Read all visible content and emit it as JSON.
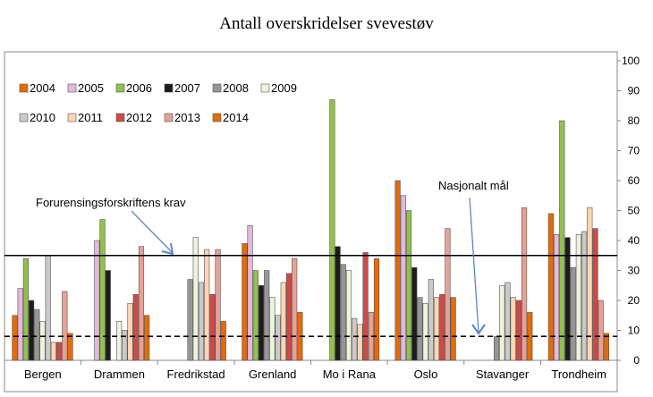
{
  "chart_data": {
    "type": "bar",
    "title": "Antall overskridelser svevestøv",
    "xlabel": "",
    "ylabel": "",
    "ylim": [
      0,
      100
    ],
    "yticks": [
      0,
      10,
      20,
      30,
      40,
      50,
      60,
      70,
      80,
      90,
      100
    ],
    "y_axis_side": "right",
    "legend_placement": "top-left",
    "categories": [
      "Bergen",
      "Drammen",
      "Fredrikstad",
      "Grenland",
      "Mo i Rana",
      "Oslo",
      "Stavanger",
      "Trondheim"
    ],
    "series": [
      {
        "name": "2004",
        "color": "#e36c0a",
        "values": [
          15,
          null,
          null,
          39,
          null,
          60,
          null,
          49
        ]
      },
      {
        "name": "2005",
        "color": "#e4b8dc",
        "values": [
          24,
          40,
          null,
          45,
          null,
          55,
          null,
          42
        ]
      },
      {
        "name": "2006",
        "color": "#92c050",
        "values": [
          34,
          47,
          null,
          30,
          87,
          50,
          null,
          80
        ]
      },
      {
        "name": "2007",
        "color": "#1c1c1c",
        "values": [
          20,
          30,
          null,
          25,
          38,
          31,
          null,
          41
        ]
      },
      {
        "name": "2008",
        "color": "#969696",
        "values": [
          17,
          null,
          27,
          30,
          32,
          21,
          8,
          31
        ]
      },
      {
        "name": "2009",
        "color": "#eef3dc",
        "values": [
          13,
          13,
          41,
          21,
          30,
          19,
          25,
          42
        ]
      },
      {
        "name": "2010",
        "color": "#cacaca",
        "values": [
          35,
          10,
          26,
          15,
          14,
          27,
          26,
          43
        ]
      },
      {
        "name": "2011",
        "color": "#fcd5b4",
        "values": [
          6,
          19,
          37,
          26,
          12,
          21,
          21,
          51
        ]
      },
      {
        "name": "2012",
        "color": "#d04848",
        "values": [
          6,
          22,
          22,
          29,
          36,
          22,
          20,
          44
        ]
      },
      {
        "name": "2013",
        "color": "#e6a195",
        "values": [
          23,
          38,
          37,
          34,
          16,
          44,
          51,
          20
        ]
      },
      {
        "name": "2014",
        "color": "#e36c0a",
        "values": [
          9,
          15,
          13,
          16,
          34,
          21,
          16,
          9
        ]
      }
    ],
    "reference_lines": [
      {
        "label": "Forurensingsforskriftens krav",
        "value": 35,
        "style": "solid"
      },
      {
        "label": "Nasjonalt mål",
        "value": 8,
        "style": "dashed"
      }
    ]
  }
}
